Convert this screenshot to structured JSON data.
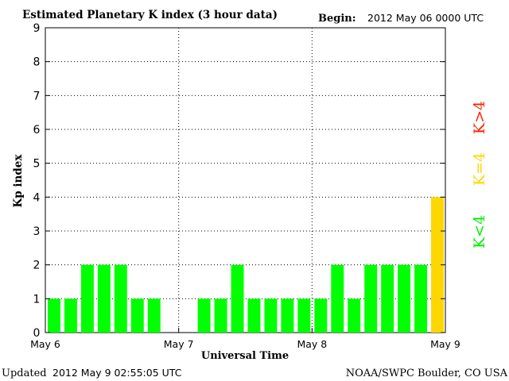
{
  "header": {
    "title": "Estimated Planetary K index (3 hour data)",
    "begin_label": "Begin:",
    "begin_value": "2012 May 06 0000 UTC"
  },
  "footer": {
    "updated_label": "Updated",
    "updated_value": "2012 May  9 02:55:05 UTC",
    "source": "NOAA/SWPC Boulder, CO USA"
  },
  "legend": {
    "above": "K>4",
    "equal": "K=4",
    "below": "K<4"
  },
  "colors": {
    "below": "#00ff00",
    "equal": "#ffd700",
    "above": "#ff2200",
    "grid": "#000000",
    "axis": "#000000"
  },
  "chart_data": {
    "type": "bar",
    "title": "Estimated Planetary K index (3 hour data)",
    "xlabel": "Universal Time",
    "ylabel": "Kp index",
    "ylim": [
      0,
      9
    ],
    "yticks": [
      0,
      1,
      2,
      3,
      4,
      5,
      6,
      7,
      8,
      9
    ],
    "x_tick_labels": [
      "May 6",
      "May 7",
      "May 8",
      "May 9"
    ],
    "bins_per_day": 8,
    "days": 3,
    "grid": true,
    "values": [
      1,
      1,
      2,
      2,
      2,
      1,
      1,
      0,
      0,
      1,
      1,
      2,
      1,
      1,
      1,
      1,
      1,
      2,
      1,
      2,
      2,
      2,
      2,
      4
    ],
    "legend_placement": "right"
  }
}
